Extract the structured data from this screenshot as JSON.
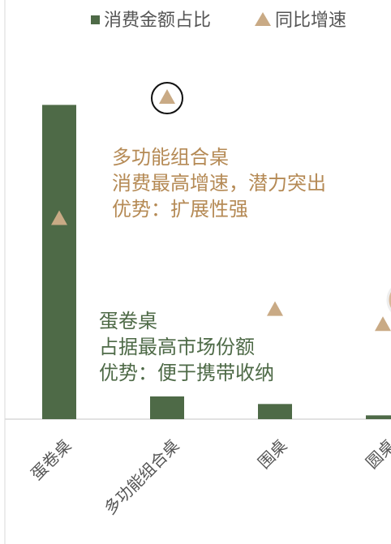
{
  "chart_data": {
    "type": "bar",
    "categories": [
      "蛋卷桌",
      "多功能组合桌",
      "围桌",
      "圆桌"
    ],
    "series": [
      {
        "name": "消费金额占比",
        "color": "#4e6a47",
        "values": [
          83,
          6,
          4,
          1
        ]
      },
      {
        "name": "同比增速",
        "color": "#c9aa85",
        "axis": "y2",
        "type": "scatter",
        "values": [
          53,
          85,
          29,
          25
        ]
      }
    ],
    "ylim": [
      0,
      100
    ],
    "y2lim": [
      0,
      100
    ],
    "annotations": [
      {
        "color": "#b58a55",
        "lines": [
          "多功能组合桌",
          "消费最高增速，潜力突出",
          "优势：扩展性强"
        ]
      },
      {
        "color": "#4e6a47",
        "lines": [
          "蛋卷桌",
          "占据最高市场份额",
          "优势：便于携带收纳"
        ]
      }
    ],
    "legend": "top"
  }
}
